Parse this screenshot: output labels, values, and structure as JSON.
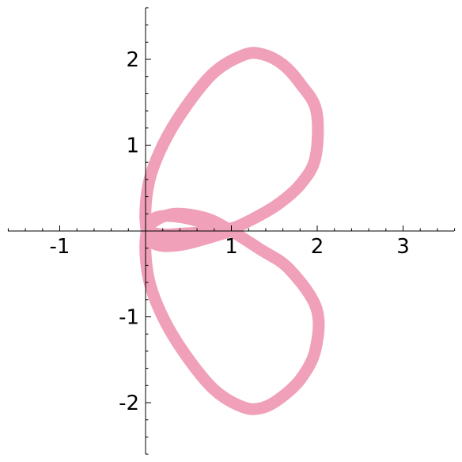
{
  "chart_data": {
    "type": "line",
    "title": "",
    "xlabel": "",
    "ylabel": "",
    "xlim": [
      -1.6,
      3.6
    ],
    "ylim": [
      -2.6,
      2.6
    ],
    "grid": false,
    "x_ticks": [
      {
        "value": -1,
        "label": "-1"
      },
      {
        "value": 1,
        "label": "1"
      },
      {
        "value": 2,
        "label": "2"
      },
      {
        "value": 3,
        "label": "3"
      }
    ],
    "y_ticks": [
      {
        "value": 2,
        "label": "2"
      },
      {
        "value": 1,
        "label": "1"
      },
      {
        "value": -1,
        "label": "-1"
      },
      {
        "value": -2,
        "label": "-2"
      }
    ],
    "x_minor_step": 0.2,
    "y_minor_step": 0.2,
    "series": [
      {
        "color": "#f0a0b8",
        "x": [
          1.0,
          0.42,
          0.09,
          0.0,
          0.04,
          0.2,
          0.45,
          0.79,
          1.14,
          1.36,
          1.6,
          1.8,
          1.99,
          1.98,
          1.81,
          1.54,
          1.23,
          1.0,
          0.72,
          0.43,
          0.2,
          0.05,
          0.08,
          0.33,
          0.7,
          1.0,
          1.33,
          1.67,
          1.99,
          1.98,
          1.81,
          1.58,
          1.36,
          1.13,
          0.79,
          0.45,
          0.2,
          0.04,
          0.0,
          0.09,
          0.42,
          1.0
        ],
        "y": [
          0.0,
          -0.16,
          -0.14,
          0.12,
          0.57,
          1.0,
          1.42,
          1.84,
          2.05,
          2.06,
          1.94,
          1.72,
          1.4,
          0.86,
          0.55,
          0.31,
          0.13,
          0.03,
          -0.01,
          -0.03,
          -0.04,
          0.0,
          0.1,
          0.2,
          0.15,
          0.0,
          -0.21,
          -0.44,
          -0.9,
          -1.38,
          -1.72,
          -1.94,
          -2.06,
          -2.05,
          -1.84,
          -1.42,
          -1.0,
          -0.57,
          -0.12,
          0.14,
          0.16,
          0.0
        ]
      }
    ]
  }
}
